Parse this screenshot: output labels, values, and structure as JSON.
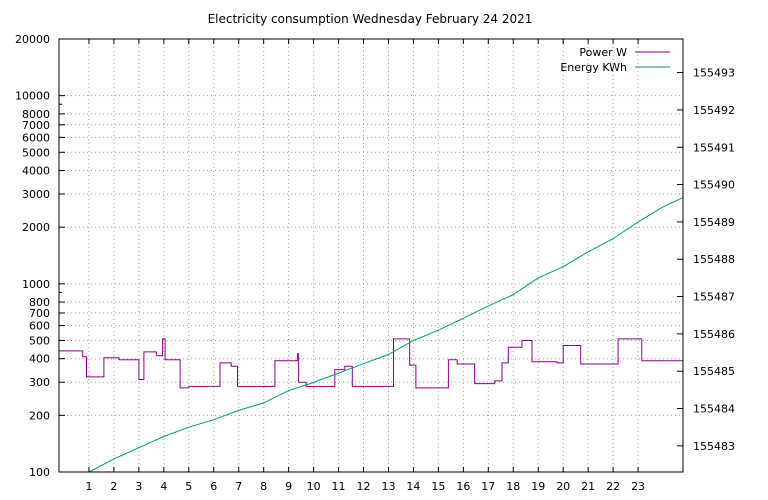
{
  "chart_data": {
    "type": "line",
    "title": "Electricity consumption Wednesday February 24 2021",
    "grid": true,
    "legend_position": "top-right",
    "x_axis": {
      "range": [
        -0.2,
        24.8
      ],
      "ticks": [
        "1",
        "2",
        "3",
        "4",
        "5",
        "6",
        "7",
        "8",
        "9",
        "10",
        "11",
        "12",
        "13",
        "14",
        "15",
        "16",
        "17",
        "18",
        "19",
        "20",
        "21",
        "22",
        "23"
      ]
    },
    "y_axis_left": {
      "scale": "log",
      "range": [
        100,
        20000
      ],
      "ticks": [
        {
          "value": 100,
          "label": "100"
        },
        {
          "value": 200,
          "label": "200"
        },
        {
          "value": 300,
          "label": "300"
        },
        {
          "value": 400,
          "label": "400"
        },
        {
          "value": 500,
          "label": "500"
        },
        {
          "value": 600,
          "label": "600"
        },
        {
          "value": 700,
          "label": "700"
        },
        {
          "value": 800,
          "label": "800"
        },
        {
          "value": 1000,
          "label": "1000"
        },
        {
          "value": 2000,
          "label": "2000"
        },
        {
          "value": 3000,
          "label": "3000"
        },
        {
          "value": 4000,
          "label": "4000"
        },
        {
          "value": 5000,
          "label": "5000"
        },
        {
          "value": 6000,
          "label": "6000"
        },
        {
          "value": 7000,
          "label": "7000"
        },
        {
          "value": 8000,
          "label": "8000"
        },
        {
          "value": 10000,
          "label": "10000"
        },
        {
          "value": 20000,
          "label": "20000"
        }
      ]
    },
    "y_axis_right": {
      "scale": "linear",
      "range": [
        155482.3,
        155493.9
      ],
      "ticks": [
        {
          "value": 155483,
          "label": "155483"
        },
        {
          "value": 155484,
          "label": "155484"
        },
        {
          "value": 155485,
          "label": "155485"
        },
        {
          "value": 155486,
          "label": "155486"
        },
        {
          "value": 155487,
          "label": "155487"
        },
        {
          "value": 155488,
          "label": "155488"
        },
        {
          "value": 155489,
          "label": "155489"
        },
        {
          "value": 155490,
          "label": "155490"
        },
        {
          "value": 155491,
          "label": "155491"
        },
        {
          "value": 155492,
          "label": "155492"
        },
        {
          "value": 155493,
          "label": "155493"
        }
      ]
    },
    "series": [
      {
        "name": "Power W",
        "color": "#8b008b",
        "axis": "left",
        "step": true,
        "points": [
          [
            -0.2,
            440
          ],
          [
            0.75,
            440
          ],
          [
            0.75,
            410
          ],
          [
            0.9,
            410
          ],
          [
            0.9,
            320
          ],
          [
            1.6,
            320
          ],
          [
            1.6,
            405
          ],
          [
            2.2,
            405
          ],
          [
            2.2,
            395
          ],
          [
            3.0,
            395
          ],
          [
            3.0,
            310
          ],
          [
            3.2,
            310
          ],
          [
            3.2,
            435
          ],
          [
            3.7,
            435
          ],
          [
            3.7,
            415
          ],
          [
            3.95,
            415
          ],
          [
            3.95,
            510
          ],
          [
            4.05,
            510
          ],
          [
            4.05,
            395
          ],
          [
            4.65,
            395
          ],
          [
            4.65,
            280
          ],
          [
            5.0,
            280
          ],
          [
            5.0,
            285
          ],
          [
            6.25,
            285
          ],
          [
            6.25,
            380
          ],
          [
            6.7,
            380
          ],
          [
            6.7,
            365
          ],
          [
            6.95,
            365
          ],
          [
            6.95,
            285
          ],
          [
            8.45,
            285
          ],
          [
            8.45,
            390
          ],
          [
            9.35,
            390
          ],
          [
            9.35,
            425
          ],
          [
            9.4,
            425
          ],
          [
            9.4,
            300
          ],
          [
            9.7,
            300
          ],
          [
            9.7,
            285
          ],
          [
            10.85,
            285
          ],
          [
            10.85,
            350
          ],
          [
            11.25,
            350
          ],
          [
            11.25,
            365
          ],
          [
            11.55,
            365
          ],
          [
            11.55,
            285
          ],
          [
            13.2,
            285
          ],
          [
            13.2,
            510
          ],
          [
            13.85,
            510
          ],
          [
            13.85,
            370
          ],
          [
            14.1,
            370
          ],
          [
            14.1,
            280
          ],
          [
            15.4,
            280
          ],
          [
            15.4,
            395
          ],
          [
            15.75,
            395
          ],
          [
            15.75,
            375
          ],
          [
            16.45,
            375
          ],
          [
            16.45,
            295
          ],
          [
            17.25,
            295
          ],
          [
            17.25,
            305
          ],
          [
            17.55,
            305
          ],
          [
            17.55,
            380
          ],
          [
            17.8,
            380
          ],
          [
            17.8,
            460
          ],
          [
            18.35,
            460
          ],
          [
            18.35,
            500
          ],
          [
            18.75,
            500
          ],
          [
            18.75,
            385
          ],
          [
            19.75,
            385
          ],
          [
            19.75,
            380
          ],
          [
            20.0,
            380
          ],
          [
            20.0,
            470
          ],
          [
            20.7,
            470
          ],
          [
            20.7,
            375
          ],
          [
            22.2,
            375
          ],
          [
            22.2,
            510
          ],
          [
            23.15,
            510
          ],
          [
            23.15,
            390
          ],
          [
            24.8,
            390
          ]
        ]
      },
      {
        "name": "Energy KWh",
        "color": "#009e73",
        "axis": "right",
        "step": false,
        "points": [
          [
            1.0,
            155482.3
          ],
          [
            2.0,
            155482.65
          ],
          [
            3.0,
            155482.95
          ],
          [
            4.0,
            155483.25
          ],
          [
            5.0,
            155483.5
          ],
          [
            6.0,
            155483.7
          ],
          [
            7.0,
            155483.95
          ],
          [
            8.0,
            155484.15
          ],
          [
            9.0,
            155484.48
          ],
          [
            10.0,
            155484.7
          ],
          [
            11.0,
            155484.95
          ],
          [
            12.0,
            155485.2
          ],
          [
            13.0,
            155485.45
          ],
          [
            14.0,
            155485.82
          ],
          [
            15.0,
            155486.1
          ],
          [
            16.0,
            155486.42
          ],
          [
            17.0,
            155486.75
          ],
          [
            18.0,
            155487.05
          ],
          [
            19.0,
            155487.5
          ],
          [
            20.0,
            155487.8
          ],
          [
            21.0,
            155488.2
          ],
          [
            22.0,
            155488.55
          ],
          [
            23.0,
            155489.0
          ],
          [
            24.0,
            155489.4
          ],
          [
            24.8,
            155489.65
          ]
        ]
      }
    ]
  }
}
